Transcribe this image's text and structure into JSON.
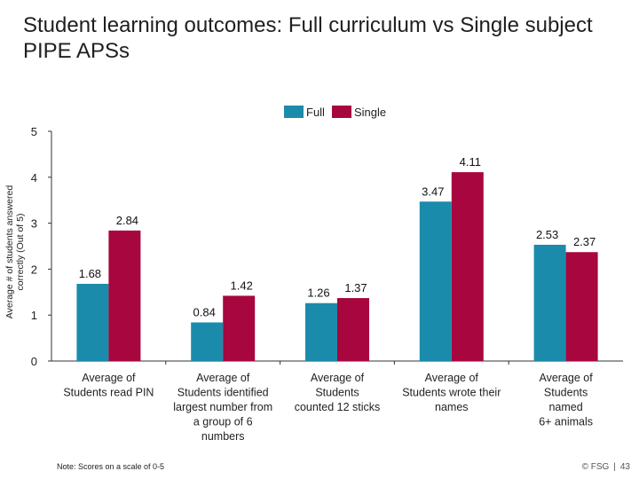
{
  "title": "Student learning outcomes: Full curriculum vs Single subject PIPE APSs",
  "legend": {
    "full": "Full",
    "single": "Single"
  },
  "colors": {
    "full": "#1b8bab",
    "single": "#a8063e",
    "axis": "#333333"
  },
  "chart_data": {
    "type": "bar",
    "title": "Student learning outcomes: Full curriculum vs Single subject PIPE APSs",
    "xlabel": "",
    "ylabel": "Average # of students answered correctly (Out of 5)",
    "ylim": [
      0,
      5
    ],
    "yticks": [
      "0",
      "1",
      "2",
      "3",
      "4",
      "5"
    ],
    "grid": false,
    "legend_position": "top-center",
    "categories": [
      [
        "Average of",
        "Students read PIN"
      ],
      [
        "Average of",
        "Students identified",
        "largest number from",
        "a group of 6",
        "numbers"
      ],
      [
        "Average of",
        "Students",
        "counted 12 sticks"
      ],
      [
        "Average of",
        "Students wrote their",
        "names"
      ],
      [
        "Average of",
        "Students",
        "named",
        "6+ animals"
      ]
    ],
    "series": [
      {
        "name": "Full",
        "values": [
          1.68,
          0.84,
          1.26,
          3.47,
          2.53
        ],
        "labels": [
          "1.68",
          "0.84",
          "1.26",
          "3.47",
          "2.53"
        ]
      },
      {
        "name": "Single",
        "values": [
          2.84,
          1.42,
          1.37,
          4.11,
          2.37
        ],
        "labels": [
          "2.84",
          "1.42",
          "1.37",
          "4.11",
          "2.37"
        ]
      }
    ]
  },
  "note": "Note: Scores on a scale of 0-5",
  "footer": {
    "copyright": "© FSG",
    "separator": "|",
    "page": "43"
  }
}
